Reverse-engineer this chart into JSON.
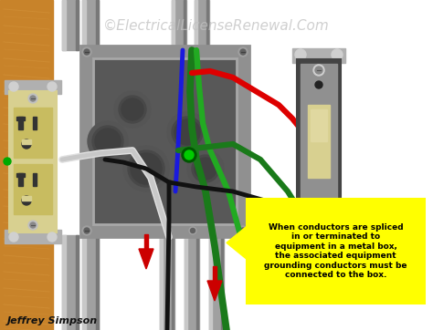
{
  "watermark_text": "©ElectricalLicenseRenewal.Com",
  "watermark_color": "#c0c0c0",
  "watermark_fontsize": 11,
  "author_text": "Jeffrey Simpson",
  "author_color": "#111111",
  "author_fontsize": 8,
  "bg_color": "#ffffff",
  "annotation_box_color": "#ffff00",
  "annotation_border_color": "#cccc00",
  "annotation_text": "When conductors are spliced\nin or terminated to\nequipment in a metal box,\nthe associated equipment\ngrounding conductors must be\nconnected to the box.",
  "annotation_text_color": "#000000",
  "annotation_fontsize": 6.5,
  "wood_color": "#c8832a",
  "wood_grain": "#d4933a",
  "box_outer": "#909090",
  "box_rim": "#a8a8a8",
  "box_inner": "#686868",
  "box_recess": "#585858",
  "conduit_color": "#a0a0a0",
  "conduit_light": "#c8c8c8",
  "conduit_dark": "#787878",
  "outlet_body": "#d8d090",
  "outlet_face": "#c8c070",
  "switch_body": "#444444",
  "switch_plate": "#909090",
  "switch_toggle": "#d8d090",
  "wire_red": "#dd0000",
  "wire_black": "#111111",
  "wire_white": "#e0e0e0",
  "wire_green": "#1a7a1a",
  "wire_blue": "#1a1add",
  "wire_green2": "#22aa22",
  "arrow_red": "#cc0000",
  "green_dot": "#00cc00",
  "fig_width": 4.74,
  "fig_height": 3.62,
  "dpi": 100
}
